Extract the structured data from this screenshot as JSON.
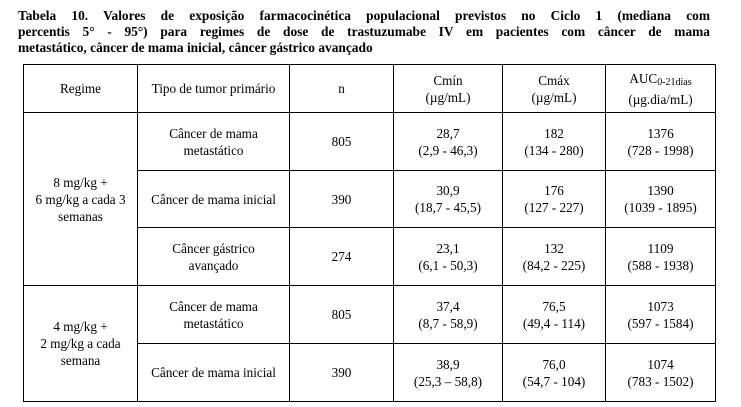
{
  "caption": {
    "line1": "Tabela 10. Valores de exposição farmacocinética populacional previstos no Ciclo 1 (mediana com",
    "line2": "percentis 5° - 95°) para regimes de dose de trastuzumabe IV em pacientes com câncer de mama",
    "line3": "metastático, câncer de mama inicial, câncer gástrico avançado"
  },
  "table": {
    "headers": {
      "regime": "Regime",
      "tumor": "Tipo de tumor primário",
      "n": "n",
      "cmin_l1": "Cmín",
      "cmin_l2": "(µg/mL)",
      "cmax_l1": "Cmáx",
      "cmax_l2": "(µg/mL)",
      "auc_base": "AUC",
      "auc_sub": "0-21dias",
      "auc_l2": "(µg.dia/mL)"
    },
    "regimes": [
      {
        "l1": "8 mg/kg +",
        "l2": "6 mg/kg a cada 3",
        "l3": "semanas"
      },
      {
        "l1": "4 mg/kg +",
        "l2": "2 mg/kg a cada",
        "l3": "semana"
      }
    ],
    "rows": [
      {
        "tumor_l1": "Câncer de mama",
        "tumor_l2": "metastático",
        "n": "805",
        "cmin": "28,7",
        "cmin_range": "(2,9 - 46,3)",
        "cmax": "182",
        "cmax_range": "(134 - 280)",
        "auc": "1376",
        "auc_range": "(728 - 1998)"
      },
      {
        "tumor_l1": "Câncer de mama inicial",
        "tumor_l2": "",
        "n": "390",
        "cmin": "30,9",
        "cmin_range": "(18,7 - 45,5)",
        "cmax": "176",
        "cmax_range": "(127 - 227)",
        "auc": "1390",
        "auc_range": "(1039 - 1895)"
      },
      {
        "tumor_l1": "Câncer gástrico",
        "tumor_l2": "avançado",
        "n": "274",
        "cmin": "23,1",
        "cmin_range": "(6,1 - 50,3)",
        "cmax": "132",
        "cmax_range": "(84,2 - 225)",
        "auc": "1109",
        "auc_range": "(588 - 1938)"
      },
      {
        "tumor_l1": "Câncer de mama",
        "tumor_l2": "metastático",
        "n": "805",
        "cmin": "37,4",
        "cmin_range": "(8,7 - 58,9)",
        "cmax": "76,5",
        "cmax_range": "(49,4 - 114)",
        "auc": "1073",
        "auc_range": "(597 - 1584)"
      },
      {
        "tumor_l1": "Câncer de mama inicial",
        "tumor_l2": "",
        "n": "390",
        "cmin": "38,9",
        "cmin_range": "(25,3 – 58,8)",
        "cmax": "76,0",
        "cmax_range": "(54,7 - 104)",
        "auc": "1074",
        "auc_range": "(783 - 1502)"
      }
    ]
  }
}
